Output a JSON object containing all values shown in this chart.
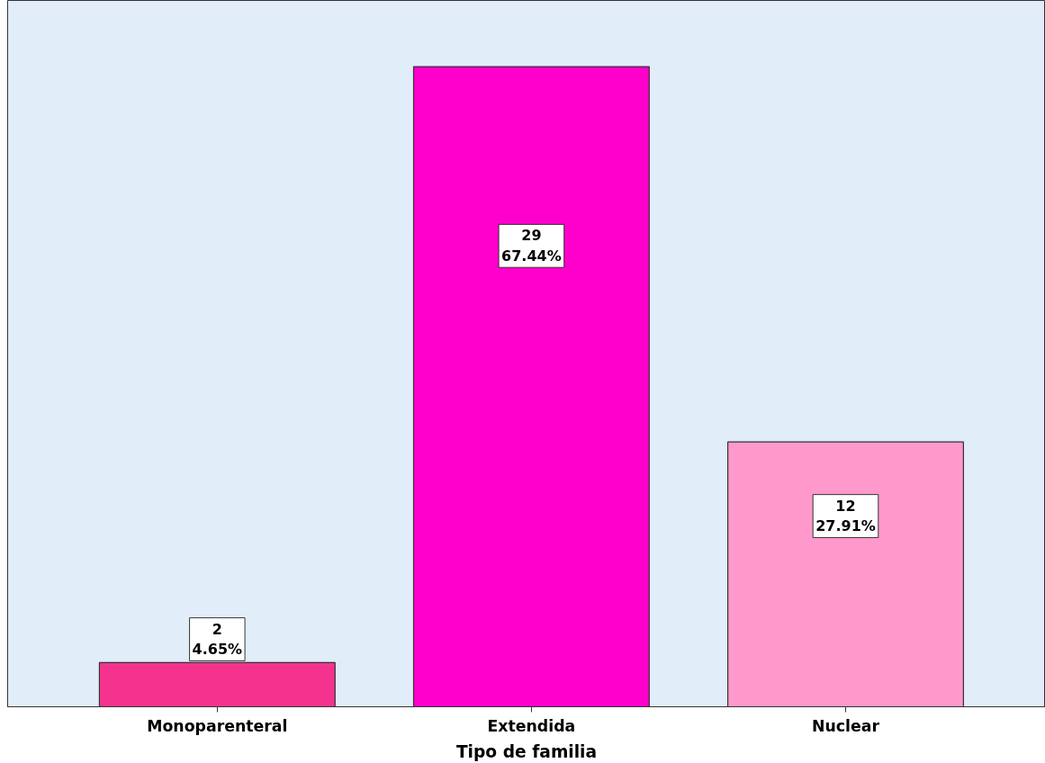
{
  "chart_data": {
    "type": "bar",
    "xlabel": "Tipo de familia",
    "categories": [
      "Monoparenteral",
      "Extendida",
      "Nuclear"
    ],
    "values": [
      2,
      29,
      12
    ],
    "colors": [
      "#f5338f",
      "#ff00cc",
      "#ff99cc"
    ],
    "value_labels": [
      "2\n4.65%",
      "29\n67.44%",
      "12\n27.91%"
    ],
    "ylim": [
      0,
      32
    ],
    "tick_labels": "x",
    "grid": false
  }
}
